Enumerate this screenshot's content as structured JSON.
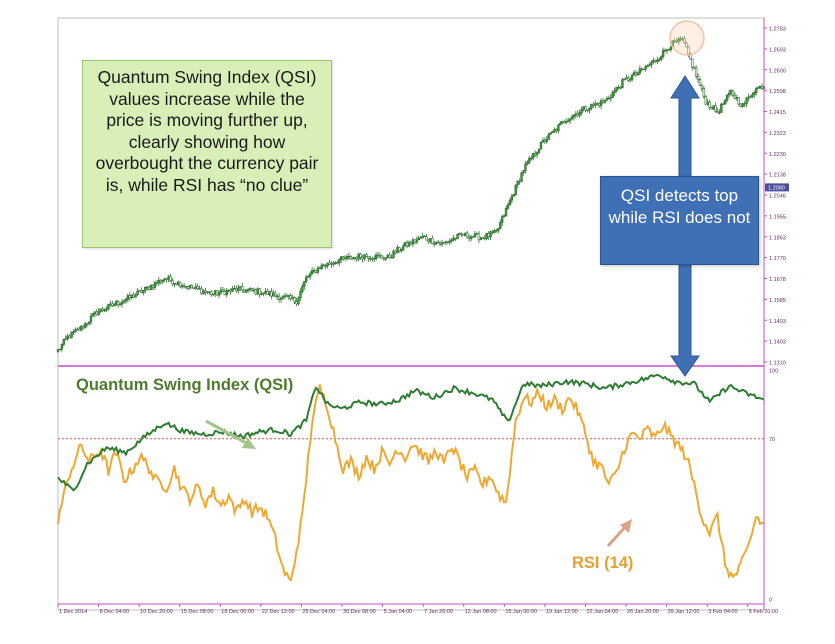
{
  "callouts": {
    "qsi_note": "Quantum Swing Index (QSI) values increase while the price is moving further up, clearly showing how overbought the currency pair is, while RSI has “no clue”",
    "top_note": "QSI detects top while RSI does not"
  },
  "colors": {
    "price": "#2f7a2f",
    "qsi": "#2e7d32",
    "rsi": "#f0a830",
    "separator": "#c94fc9",
    "level_line": "#e05050",
    "callout_green": "#d8efb8",
    "callout_blue": "#3f6fb4",
    "arrow_blue": "#3f6fb4"
  },
  "chart_data": [
    {
      "type": "candlestick",
      "name": "price",
      "ylim": [
        1.131,
        1.2783
      ],
      "y_tick_labels": [
        "1.2783",
        "1.2693",
        "1.2600",
        "1.2508",
        "1.2415",
        "1.2323",
        "1.2230",
        "1.2138",
        "1.2046",
        "1.1955",
        "1.1863",
        "1.1770",
        "1.1678",
        "1.1585",
        "1.1493",
        "1.1403",
        "1.1310"
      ],
      "current_price_label": "1.2080",
      "anchors": [
        [
          0,
          1.136
        ],
        [
          5,
          1.142
        ],
        [
          12,
          1.146
        ],
        [
          20,
          1.153
        ],
        [
          28,
          1.156
        ],
        [
          36,
          1.159
        ],
        [
          45,
          1.163
        ],
        [
          55,
          1.168
        ],
        [
          68,
          1.164
        ],
        [
          80,
          1.161
        ],
        [
          92,
          1.163
        ],
        [
          104,
          1.162
        ],
        [
          114,
          1.16
        ],
        [
          123,
          1.158
        ],
        [
          128,
          1.168
        ],
        [
          135,
          1.173
        ],
        [
          145,
          1.176
        ],
        [
          158,
          1.178
        ],
        [
          170,
          1.177
        ],
        [
          178,
          1.182
        ],
        [
          188,
          1.186
        ],
        [
          198,
          1.183
        ],
        [
          208,
          1.187
        ],
        [
          219,
          1.186
        ],
        [
          226,
          1.188
        ],
        [
          232,
          1.2
        ],
        [
          240,
          1.216
        ],
        [
          250,
          1.228
        ],
        [
          262,
          1.238
        ],
        [
          272,
          1.243
        ],
        [
          282,
          1.246
        ],
        [
          292,
          1.255
        ],
        [
          300,
          1.259
        ],
        [
          308,
          1.264
        ],
        [
          316,
          1.271
        ],
        [
          322,
          1.273
        ],
        [
          327,
          1.262
        ],
        [
          334,
          1.246
        ],
        [
          340,
          1.241
        ],
        [
          347,
          1.25
        ],
        [
          353,
          1.244
        ],
        [
          359,
          1.251
        ],
        [
          364,
          1.253
        ]
      ]
    },
    {
      "type": "line",
      "name": "QSI",
      "series_label": "Quantum Swing Index (QSI)",
      "ylim": [
        0,
        100
      ],
      "y_tick_labels": [
        "100",
        "70",
        "0"
      ],
      "level": 70,
      "anchors": [
        [
          0,
          53
        ],
        [
          8,
          47
        ],
        [
          15,
          59
        ],
        [
          25,
          66
        ],
        [
          35,
          64
        ],
        [
          45,
          71
        ],
        [
          55,
          77
        ],
        [
          65,
          73
        ],
        [
          75,
          72
        ],
        [
          85,
          73
        ],
        [
          95,
          71
        ],
        [
          104,
          73
        ],
        [
          112,
          74
        ],
        [
          120,
          72
        ],
        [
          128,
          78
        ],
        [
          133,
          93
        ],
        [
          139,
          85
        ],
        [
          146,
          83
        ],
        [
          156,
          86
        ],
        [
          166,
          85
        ],
        [
          176,
          87
        ],
        [
          184,
          91
        ],
        [
          194,
          88
        ],
        [
          204,
          92
        ],
        [
          214,
          90
        ],
        [
          224,
          87
        ],
        [
          232,
          77
        ],
        [
          240,
          94
        ],
        [
          249,
          93
        ],
        [
          262,
          95
        ],
        [
          272,
          94
        ],
        [
          282,
          92
        ],
        [
          292,
          94
        ],
        [
          302,
          96
        ],
        [
          310,
          98
        ],
        [
          318,
          95
        ],
        [
          328,
          94
        ],
        [
          336,
          86
        ],
        [
          346,
          93
        ],
        [
          354,
          90
        ],
        [
          364,
          87
        ]
      ]
    },
    {
      "type": "line",
      "name": "RSI",
      "series_label": "RSI (14)",
      "ylim": [
        0,
        100
      ],
      "anchors": [
        [
          0,
          35
        ],
        [
          6,
          55
        ],
        [
          12,
          67
        ],
        [
          16,
          60
        ],
        [
          22,
          65
        ],
        [
          26,
          56
        ],
        [
          30,
          64
        ],
        [
          34,
          52
        ],
        [
          38,
          56
        ],
        [
          42,
          62
        ],
        [
          46,
          59
        ],
        [
          50,
          52
        ],
        [
          56,
          49
        ],
        [
          60,
          57
        ],
        [
          64,
          48
        ],
        [
          68,
          44
        ],
        [
          72,
          49
        ],
        [
          76,
          42
        ],
        [
          80,
          47
        ],
        [
          84,
          41
        ],
        [
          88,
          45
        ],
        [
          92,
          38
        ],
        [
          96,
          44
        ],
        [
          100,
          38
        ],
        [
          104,
          40
        ],
        [
          108,
          36
        ],
        [
          112,
          26
        ],
        [
          116,
          13
        ],
        [
          120,
          7
        ],
        [
          126,
          36
        ],
        [
          131,
          78
        ],
        [
          135,
          92
        ],
        [
          139,
          84
        ],
        [
          143,
          70
        ],
        [
          147,
          57
        ],
        [
          151,
          60
        ],
        [
          155,
          54
        ],
        [
          159,
          62
        ],
        [
          163,
          57
        ],
        [
          167,
          64
        ],
        [
          171,
          59
        ],
        [
          175,
          66
        ],
        [
          179,
          62
        ],
        [
          183,
          68
        ],
        [
          187,
          64
        ],
        [
          191,
          60
        ],
        [
          195,
          65
        ],
        [
          199,
          59
        ],
        [
          203,
          67
        ],
        [
          207,
          60
        ],
        [
          211,
          53
        ],
        [
          215,
          56
        ],
        [
          219,
          50
        ],
        [
          223,
          54
        ],
        [
          227,
          46
        ],
        [
          231,
          42
        ],
        [
          236,
          78
        ],
        [
          240,
          88
        ],
        [
          244,
          86
        ],
        [
          248,
          90
        ],
        [
          252,
          84
        ],
        [
          256,
          87
        ],
        [
          260,
          83
        ],
        [
          264,
          88
        ],
        [
          268,
          82
        ],
        [
          272,
          72
        ],
        [
          276,
          60
        ],
        [
          280,
          58
        ],
        [
          284,
          50
        ],
        [
          288,
          55
        ],
        [
          292,
          66
        ],
        [
          296,
          72
        ],
        [
          300,
          70
        ],
        [
          304,
          74
        ],
        [
          308,
          70
        ],
        [
          312,
          76
        ],
        [
          316,
          71
        ],
        [
          320,
          67
        ],
        [
          324,
          62
        ],
        [
          328,
          50
        ],
        [
          332,
          36
        ],
        [
          336,
          29
        ],
        [
          340,
          36
        ],
        [
          344,
          15
        ],
        [
          348,
          9
        ],
        [
          352,
          14
        ],
        [
          356,
          23
        ],
        [
          360,
          36
        ],
        [
          364,
          32
        ]
      ]
    }
  ],
  "x_axis": {
    "tick_labels": [
      "1 Dec 2014",
      "8 Dec 04:00",
      "10 Dec 20:00",
      "15 Dec 08:00",
      "18 Dec 00:00",
      "22 Dec 12:00",
      "25 Dec 04:00",
      "30 Dec 08:00",
      "5 Jan 04:00",
      "7 Jan 20:00",
      "12 Jan 08:00",
      "15 Jan 00:00",
      "19 Jan 12:00",
      "22 Jan 04:00",
      "26 Jan 20:00",
      "29 Jan 12:00",
      "3 Feb 04:00",
      "5 Feb 20:00"
    ]
  }
}
